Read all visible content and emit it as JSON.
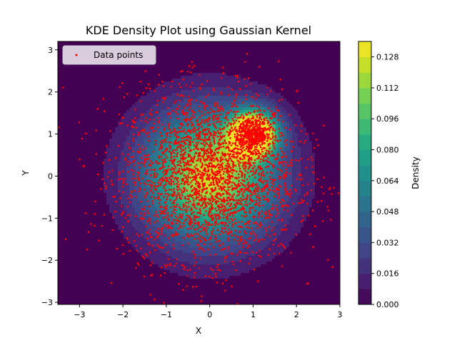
{
  "chart_data": {
    "type": "contour",
    "title": "KDE Density Plot using Gaussian Kernel",
    "xlabel": "X",
    "ylabel": "Y",
    "xlim": [
      -3.5,
      3.0
    ],
    "ylim": [
      -3.05,
      3.2
    ],
    "x_ticks": [
      -3,
      -2,
      -1,
      0,
      1,
      2,
      3
    ],
    "y_ticks": [
      -3,
      -2,
      -1,
      0,
      1,
      2,
      3
    ],
    "legend": {
      "position": "top-left",
      "entries": [
        "Data points"
      ]
    },
    "scatter": {
      "name": "Data points",
      "color": "#ff0000",
      "components": [
        {
          "center": [
            0.0,
            0.0
          ],
          "std": 1.0,
          "approx_count": 3000
        },
        {
          "center": [
            1.0,
            1.0
          ],
          "std": 0.2,
          "approx_count": 500
        }
      ]
    },
    "colorbar": {
      "label": "Density",
      "vmin": 0.0,
      "vmax": 0.136,
      "ticks": [
        "0.000",
        "0.016",
        "0.032",
        "0.048",
        "0.064",
        "0.080",
        "0.096",
        "0.112",
        "0.128"
      ],
      "levels": 17,
      "colormap": "viridis"
    },
    "grid": false
  }
}
